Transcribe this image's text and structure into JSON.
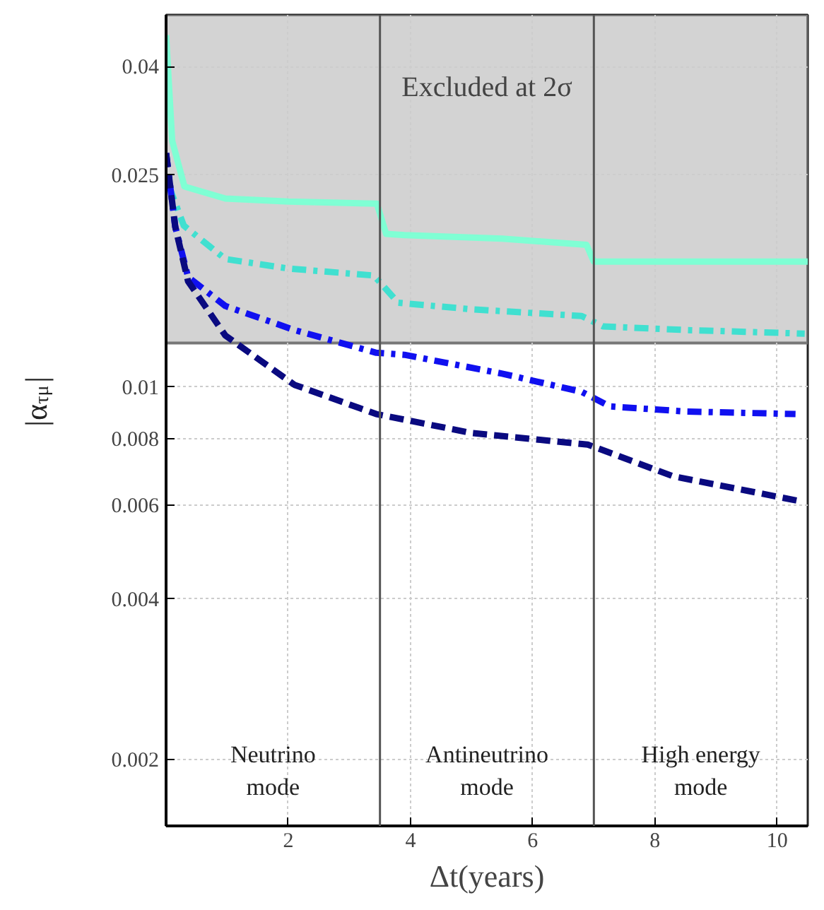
{
  "chart_data": {
    "type": "line",
    "xlabel": "Δt(years)",
    "ylabel": "|α$_{τμ}$|",
    "xlim": [
      0,
      10.5
    ],
    "xticks": [
      2,
      4,
      6,
      8,
      10
    ],
    "ylim": [
      0.0015,
      0.05
    ],
    "yticks": [
      0.002,
      0.004,
      0.006,
      0.008,
      0.01,
      0.025,
      0.04
    ],
    "log": "y",
    "grid": true,
    "series": [
      {
        "color": "#7fffd4",
        "line_style": "solid",
        "x": [
          0,
          0.1,
          0.3,
          0.97,
          2,
          3.45,
          3.6,
          3.9,
          5.5,
          6.88,
          7.0,
          8.5,
          10.5
        ],
        "values": [
          0.0458,
          0.029,
          0.0238,
          0.0226,
          0.0223,
          0.0221,
          0.0194,
          0.0193,
          0.019,
          0.0185,
          0.0172,
          0.0172,
          0.0172
        ]
      },
      {
        "color": "#40e0d0",
        "line_style": "dashdot",
        "x": [
          0.05,
          0.29,
          0.97,
          2,
          3.4,
          3.8,
          5,
          6.8,
          7.15,
          8.5,
          10.45
        ],
        "values": [
          0.0238,
          0.0201,
          0.0174,
          0.0167,
          0.0162,
          0.0144,
          0.014,
          0.0136,
          0.013,
          0.0128,
          0.0126
        ]
      },
      {
        "color": "#1010f0",
        "line_style": "dashdot",
        "x": [
          0,
          0.15,
          0.36,
          0.97,
          2.1,
          3.44,
          3.9,
          5.5,
          6.8,
          7.26,
          8.5,
          10.3
        ],
        "values": [
          0.0275,
          0.02,
          0.0161,
          0.0142,
          0.0128,
          0.0116,
          0.0115,
          0.0106,
          0.0098,
          0.0092,
          0.009,
          0.0089
        ]
      },
      {
        "color": "#0a0a80",
        "line_style": "dashed",
        "x": [
          0,
          0.15,
          0.36,
          0.97,
          2.1,
          3.44,
          5,
          6.9,
          8.3,
          10.4
        ],
        "values": [
          0.0275,
          0.02,
          0.0158,
          0.0125,
          0.0101,
          0.0089,
          0.0082,
          0.0078,
          0.0068,
          0.0061
        ]
      }
    ],
    "ref_lines": [
      {
        "axis": "x",
        "value": 3.5,
        "color": "#555555"
      },
      {
        "axis": "x",
        "value": 7,
        "color": "#555555"
      }
    ],
    "bands": [
      {
        "axis": "y",
        "from": 0.0121,
        "to": 0.05,
        "label": "Excluded at 2σ",
        "color": "#d3d3d3"
      }
    ],
    "annotations": [
      "Neutrino\nmode",
      "Antineutrino\nmode",
      "High energy\nmode"
    ]
  }
}
